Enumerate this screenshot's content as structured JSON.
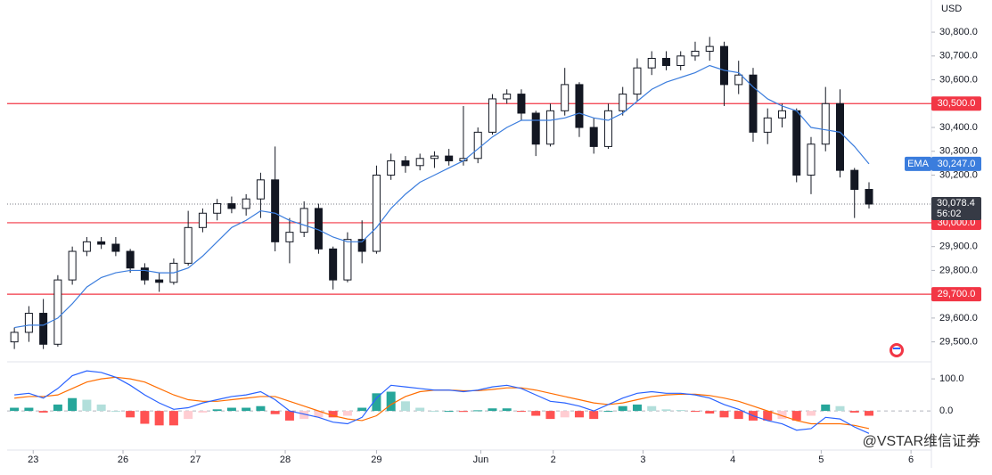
{
  "chart_data": [
    {
      "type": "candlestick",
      "currency": "USD",
      "x": [
        0,
        1,
        2,
        3,
        4,
        5,
        6,
        7,
        8,
        9,
        10,
        11,
        12,
        13,
        14,
        15,
        16,
        17,
        18,
        19,
        20,
        21,
        22,
        23,
        24,
        25,
        26,
        27,
        28,
        29,
        30,
        31,
        32,
        33,
        34,
        35,
        36,
        37,
        38,
        39,
        40,
        41,
        42,
        43,
        44,
        45,
        46,
        47,
        48,
        49,
        50,
        51,
        52,
        53,
        54,
        55,
        56,
        57,
        58,
        59
      ],
      "open": [
        29500,
        29540,
        29620,
        29490,
        29760,
        29880,
        29920,
        29910,
        29880,
        29810,
        29760,
        29750,
        29830,
        29980,
        30040,
        30080,
        30060,
        30100,
        30180,
        29920,
        29960,
        30060,
        29890,
        29760,
        29930,
        29880,
        30200,
        30260,
        30240,
        30270,
        30280,
        30260,
        30270,
        30380,
        30520,
        30540,
        30460,
        30330,
        30470,
        30580,
        30400,
        30320,
        30470,
        30540,
        30650,
        30690,
        30660,
        30700,
        30720,
        30740,
        30580,
        30620,
        30380,
        30440,
        30470,
        30200,
        30330,
        30500,
        30220,
        30140
      ],
      "high": [
        29560,
        29650,
        29680,
        29780,
        29900,
        29940,
        29940,
        29940,
        29890,
        29830,
        29790,
        29850,
        30050,
        30060,
        30100,
        30110,
        30120,
        30210,
        30320,
        30020,
        30090,
        30080,
        29900,
        29960,
        30010,
        30240,
        30290,
        30280,
        30290,
        30300,
        30310,
        30490,
        30400,
        30540,
        30560,
        30560,
        30470,
        30500,
        30650,
        30590,
        30440,
        30500,
        30570,
        30690,
        30720,
        30720,
        30720,
        30760,
        30780,
        30760,
        30680,
        30650,
        30480,
        30500,
        30480,
        30360,
        30570,
        30560,
        30230,
        30170
      ],
      "low": [
        29470,
        29500,
        29470,
        29480,
        29740,
        29860,
        29890,
        29860,
        29790,
        29740,
        29710,
        29740,
        29820,
        29960,
        30010,
        30040,
        30030,
        30020,
        29880,
        29830,
        29940,
        29870,
        29720,
        29750,
        29830,
        29870,
        30180,
        30210,
        30220,
        30230,
        30240,
        30240,
        30250,
        30370,
        30500,
        30430,
        30280,
        30320,
        30450,
        30360,
        30290,
        30310,
        30450,
        30510,
        30620,
        30640,
        30640,
        30680,
        30680,
        30490,
        30540,
        30340,
        30330,
        30400,
        30170,
        30120,
        30300,
        30190,
        30020,
        30060
      ],
      "close": [
        29540,
        29620,
        29490,
        29760,
        29880,
        29920,
        29910,
        29880,
        29810,
        29760,
        29750,
        29830,
        29980,
        30040,
        30080,
        30060,
        30100,
        30180,
        29920,
        29960,
        30060,
        29890,
        29760,
        29930,
        29880,
        30200,
        30260,
        30240,
        30270,
        30280,
        30260,
        30270,
        30380,
        30520,
        30540,
        30460,
        30330,
        30470,
        30580,
        30400,
        30320,
        30470,
        30540,
        30650,
        30690,
        30660,
        30700,
        30720,
        30740,
        30580,
        30620,
        30380,
        30440,
        30470,
        30200,
        30330,
        30500,
        30220,
        30140,
        30078.4
      ],
      "up_color": "#ffffff",
      "down_color": "#131722",
      "ema": {
        "name": "EMA",
        "color": "#3b7ddd",
        "last_label": "30,247.0",
        "values": [
          29560,
          29570,
          29570,
          29600,
          29660,
          29730,
          29770,
          29790,
          29800,
          29800,
          29790,
          29790,
          29810,
          29860,
          29920,
          29980,
          30010,
          30050,
          30040,
          30010,
          29990,
          29970,
          29940,
          29920,
          29920,
          29980,
          30060,
          30120,
          30170,
          30200,
          30230,
          30260,
          30310,
          30360,
          30400,
          30430,
          30430,
          30430,
          30440,
          30460,
          30440,
          30430,
          30460,
          30510,
          30560,
          30590,
          30610,
          30630,
          30660,
          30640,
          30630,
          30570,
          30520,
          30490,
          30470,
          30400,
          30390,
          30380,
          30320,
          30247
        ]
      },
      "levels": [
        {
          "value": 30500,
          "label": "30,500.0"
        },
        {
          "value": 30000,
          "label": "30,000.0"
        },
        {
          "value": 29700,
          "label": "29,700.0"
        }
      ],
      "level_color": "#f23645",
      "last_price": {
        "value": 30078.4,
        "label": "30,078.4"
      },
      "countdown": "56:02",
      "xlim": [
        -0.5,
        63
      ],
      "ylim": [
        29420,
        30935
      ],
      "yticks": [
        {
          "value": 30800,
          "label": "30,800.0"
        },
        {
          "value": 30700,
          "label": "30,700.0"
        },
        {
          "value": 30600,
          "label": "30,600.0"
        },
        {
          "value": 30400,
          "label": "30,400.0"
        },
        {
          "value": 30300,
          "label": "30,300.0"
        },
        {
          "value": 30200,
          "label": "30,200.0"
        },
        {
          "value": 29900,
          "label": "29,900.0"
        },
        {
          "value": 29800,
          "label": "29,800.0"
        },
        {
          "value": 29600,
          "label": "29,600.0"
        },
        {
          "value": 29500,
          "label": "29,500.0"
        }
      ],
      "xticks": [
        {
          "value": 1.3,
          "label": "23"
        },
        {
          "value": 7.5,
          "label": "26"
        },
        {
          "value": 12.5,
          "label": "27"
        },
        {
          "value": 18.7,
          "label": "28"
        },
        {
          "value": 25,
          "label": "29"
        },
        {
          "value": 32.2,
          "label": "Jun"
        },
        {
          "value": 37.2,
          "label": "2"
        },
        {
          "value": 43.4,
          "label": "3"
        },
        {
          "value": 49.6,
          "label": "4"
        },
        {
          "value": 55.7,
          "label": "5"
        },
        {
          "value": 61.9,
          "label": "6"
        }
      ]
    },
    {
      "type": "macd",
      "x": [
        0,
        1,
        2,
        3,
        4,
        5,
        6,
        7,
        8,
        9,
        10,
        11,
        12,
        13,
        14,
        15,
        16,
        17,
        18,
        19,
        20,
        21,
        22,
        23,
        24,
        25,
        26,
        27,
        28,
        29,
        30,
        31,
        32,
        33,
        34,
        35,
        36,
        37,
        38,
        39,
        40,
        41,
        42,
        43,
        44,
        45,
        46,
        47,
        48,
        49,
        50,
        51,
        52,
        53,
        54,
        55,
        56,
        57,
        58,
        59
      ],
      "macd": {
        "color": "#2962ff",
        "values": [
          50,
          55,
          40,
          70,
          110,
          125,
          120,
          105,
          80,
          50,
          25,
          5,
          10,
          25,
          35,
          45,
          50,
          60,
          35,
          0,
          -10,
          -20,
          -35,
          -40,
          -20,
          40,
          80,
          75,
          70,
          65,
          65,
          60,
          65,
          75,
          80,
          70,
          50,
          30,
          25,
          15,
          0,
          20,
          40,
          55,
          60,
          55,
          55,
          50,
          40,
          20,
          5,
          -15,
          -30,
          -40,
          -60,
          -55,
          -20,
          -25,
          -50,
          -70
        ]
      },
      "signal": {
        "color": "#ff6d00",
        "values": [
          40,
          45,
          45,
          50,
          70,
          90,
          100,
          105,
          100,
          90,
          70,
          50,
          35,
          30,
          30,
          35,
          40,
          45,
          45,
          30,
          15,
          0,
          -15,
          -25,
          -30,
          -15,
          20,
          45,
          60,
          65,
          65,
          63,
          63,
          67,
          72,
          72,
          65,
          55,
          45,
          35,
          25,
          20,
          25,
          35,
          45,
          50,
          52,
          52,
          48,
          40,
          30,
          15,
          0,
          -15,
          -30,
          -40,
          -40,
          -40,
          -45,
          -55
        ]
      },
      "histogram": {
        "colors": [
          "#26a69a",
          "#b2dfdb",
          "#ff5252",
          "#ffcdd2"
        ],
        "values": [
          10,
          10,
          -5,
          20,
          40,
          35,
          20,
          0,
          -20,
          -40,
          -45,
          -45,
          -25,
          -5,
          5,
          10,
          10,
          15,
          -10,
          -30,
          -25,
          -20,
          -20,
          -15,
          10,
          55,
          60,
          30,
          10,
          0,
          0,
          -3,
          2,
          8,
          8,
          -2,
          -15,
          -25,
          -20,
          -20,
          -25,
          0,
          15,
          20,
          15,
          5,
          3,
          -2,
          -8,
          -20,
          -25,
          -30,
          -30,
          -25,
          -30,
          -15,
          20,
          15,
          -5,
          -15
        ]
      },
      "ylim": [
        -108,
        142
      ],
      "yticks": [
        {
          "value": 100,
          "label": "100.0"
        },
        {
          "value": 0,
          "label": "0.0"
        }
      ]
    }
  ],
  "watermark": "@VSTAR维信证券"
}
